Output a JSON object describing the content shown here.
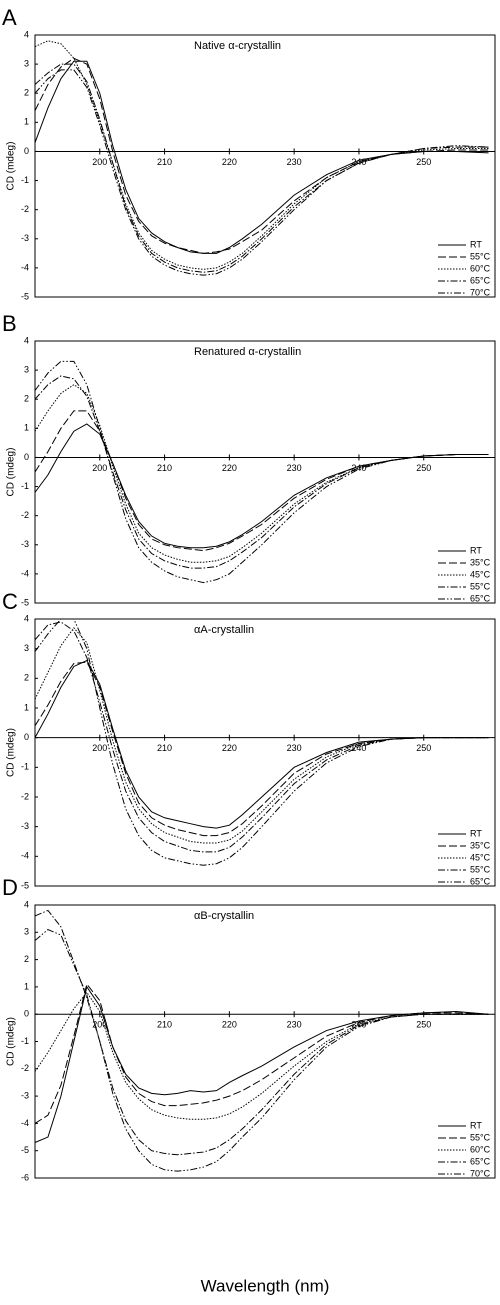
{
  "chart_data": [
    {
      "type": "line",
      "panel_label": "A",
      "title": "Native α-crystallin",
      "y_label": "CD (mdeg)",
      "x": [
        190,
        192,
        194,
        196,
        198,
        200,
        202,
        204,
        206,
        208,
        210,
        212,
        214,
        216,
        218,
        220,
        222,
        225,
        230,
        235,
        240,
        245,
        250,
        255,
        260
      ],
      "xlim": [
        190,
        261
      ],
      "xticks": [
        200,
        210,
        220,
        230,
        240,
        250
      ],
      "ylim": [
        -5,
        4
      ],
      "yticks": [
        -5,
        -4,
        -3,
        -2,
        -1,
        0,
        1,
        2,
        3,
        4
      ],
      "series": [
        {
          "name": "RT",
          "color": "#000000",
          "line_style": "solid",
          "values": [
            0.3,
            1.5,
            2.5,
            3.1,
            3.1,
            2.0,
            0.2,
            -1.3,
            -2.3,
            -2.8,
            -3.1,
            -3.3,
            -3.45,
            -3.5,
            -3.5,
            -3.3,
            -3.0,
            -2.5,
            -1.5,
            -0.8,
            -0.3,
            -0.1,
            0,
            0,
            -0.05
          ]
        },
        {
          "name": "55°C",
          "color": "#000000",
          "line_style": "dashed",
          "values": [
            1.4,
            2.3,
            2.9,
            3.2,
            3.0,
            1.8,
            0.0,
            -1.5,
            -2.4,
            -2.9,
            -3.15,
            -3.3,
            -3.4,
            -3.5,
            -3.45,
            -3.35,
            -3.1,
            -2.7,
            -1.7,
            -0.9,
            -0.35,
            -0.1,
            0,
            0.05,
            0.05
          ]
        },
        {
          "name": "60°C",
          "color": "#000000",
          "line_style": "dotted",
          "values": [
            3.6,
            3.8,
            3.7,
            3.2,
            2.3,
            1.0,
            -0.4,
            -1.8,
            -2.8,
            -3.4,
            -3.7,
            -3.9,
            -4.0,
            -4.05,
            -4.0,
            -3.8,
            -3.5,
            -2.9,
            -1.8,
            -0.9,
            -0.35,
            -0.1,
            0.05,
            0.1,
            0.1
          ]
        },
        {
          "name": "65°C",
          "color": "#000000",
          "line_style": "dashdot",
          "values": [
            2.3,
            2.7,
            3.0,
            3.0,
            2.4,
            1.1,
            -0.4,
            -1.9,
            -2.9,
            -3.5,
            -3.8,
            -4.0,
            -4.1,
            -4.15,
            -4.1,
            -3.9,
            -3.6,
            -3.0,
            -1.9,
            -1.0,
            -0.4,
            -0.1,
            0.1,
            0.15,
            0.15
          ]
        },
        {
          "name": "70°C",
          "color": "#000000",
          "line_style": "dashdotdot",
          "values": [
            2.0,
            2.5,
            2.8,
            2.8,
            2.2,
            0.9,
            -0.6,
            -2.0,
            -3.0,
            -3.6,
            -3.9,
            -4.1,
            -4.2,
            -4.25,
            -4.2,
            -4.0,
            -3.7,
            -3.1,
            -2.0,
            -1.0,
            -0.4,
            -0.1,
            0.1,
            0.2,
            0.15
          ]
        }
      ]
    },
    {
      "type": "line",
      "panel_label": "B",
      "title": "Renatured α-crystallin",
      "y_label": "CD (mdeg)",
      "x": [
        190,
        192,
        194,
        196,
        198,
        200,
        202,
        204,
        206,
        208,
        210,
        212,
        214,
        216,
        218,
        220,
        222,
        225,
        230,
        235,
        240,
        245,
        250,
        255,
        260
      ],
      "xlim": [
        190,
        261
      ],
      "xticks": [
        200,
        210,
        220,
        230,
        240,
        250
      ],
      "ylim": [
        -5,
        4
      ],
      "yticks": [
        -5,
        -4,
        -3,
        -2,
        -1,
        0,
        1,
        2,
        3,
        4
      ],
      "series": [
        {
          "name": "RT",
          "color": "#000000",
          "line_style": "solid",
          "values": [
            -1.2,
            -0.6,
            0.2,
            0.9,
            1.15,
            0.8,
            -0.2,
            -1.3,
            -2.2,
            -2.7,
            -2.95,
            -3.05,
            -3.1,
            -3.1,
            -3.05,
            -2.9,
            -2.65,
            -2.2,
            -1.3,
            -0.7,
            -0.3,
            -0.1,
            0.05,
            0.1,
            0.1
          ]
        },
        {
          "name": "35°C",
          "color": "#000000",
          "line_style": "dashed",
          "values": [
            -0.5,
            0.2,
            1.0,
            1.6,
            1.6,
            0.9,
            -0.2,
            -1.4,
            -2.3,
            -2.8,
            -3.0,
            -3.1,
            -3.15,
            -3.2,
            -3.1,
            -2.95,
            -2.7,
            -2.3,
            -1.4,
            -0.75,
            -0.3,
            -0.1,
            0.05,
            0.1,
            0.1
          ]
        },
        {
          "name": "45°C",
          "color": "#000000",
          "line_style": "dotted",
          "values": [
            0.9,
            1.6,
            2.2,
            2.5,
            2.2,
            1.1,
            -0.3,
            -1.6,
            -2.6,
            -3.1,
            -3.35,
            -3.5,
            -3.6,
            -3.6,
            -3.55,
            -3.4,
            -3.1,
            -2.6,
            -1.6,
            -0.85,
            -0.35,
            -0.1,
            0.05,
            0.1,
            0.1
          ]
        },
        {
          "name": "55°C",
          "color": "#000000",
          "line_style": "dashdot",
          "values": [
            2.0,
            2.5,
            2.8,
            2.7,
            2.1,
            0.9,
            -0.5,
            -1.8,
            -2.8,
            -3.3,
            -3.55,
            -3.7,
            -3.8,
            -3.8,
            -3.75,
            -3.55,
            -3.25,
            -2.75,
            -1.7,
            -0.9,
            -0.35,
            -0.1,
            0.05,
            0.1,
            0.1
          ]
        },
        {
          "name": "65°C",
          "color": "#000000",
          "line_style": "dashdotdot",
          "values": [
            2.3,
            2.9,
            3.3,
            3.3,
            2.5,
            1.0,
            -0.6,
            -2.1,
            -3.1,
            -3.6,
            -3.9,
            -4.1,
            -4.2,
            -4.3,
            -4.2,
            -4.0,
            -3.6,
            -3.0,
            -1.9,
            -1.0,
            -0.4,
            -0.1,
            0.05,
            0.1,
            0.1
          ]
        }
      ]
    },
    {
      "type": "line",
      "panel_label": "C",
      "title": "αA-crystallin",
      "y_label": "CD (mdeg)",
      "x": [
        190,
        192,
        194,
        196,
        198,
        200,
        202,
        204,
        206,
        208,
        210,
        212,
        214,
        216,
        218,
        220,
        222,
        225,
        230,
        235,
        240,
        245,
        250,
        255,
        260
      ],
      "xlim": [
        190,
        261
      ],
      "xticks": [
        200,
        210,
        220,
        230,
        240,
        250
      ],
      "ylim": [
        -5,
        4
      ],
      "yticks": [
        -5,
        -4,
        -3,
        -2,
        -1,
        0,
        1,
        2,
        3,
        4
      ],
      "series": [
        {
          "name": "RT",
          "color": "#000000",
          "line_style": "solid",
          "values": [
            0,
            0.8,
            1.7,
            2.4,
            2.6,
            1.8,
            0.3,
            -1.1,
            -2.0,
            -2.5,
            -2.7,
            -2.8,
            -2.9,
            -3.0,
            -3.05,
            -2.95,
            -2.6,
            -2.0,
            -1.0,
            -0.5,
            -0.15,
            -0.05,
            0,
            0,
            0
          ]
        },
        {
          "name": "35°C",
          "color": "#000000",
          "line_style": "dashed",
          "values": [
            0.4,
            1.1,
            1.9,
            2.5,
            2.55,
            1.7,
            0.2,
            -1.2,
            -2.2,
            -2.7,
            -2.95,
            -3.1,
            -3.2,
            -3.3,
            -3.3,
            -3.2,
            -2.9,
            -2.3,
            -1.2,
            -0.55,
            -0.2,
            -0.05,
            0,
            0,
            0
          ]
        },
        {
          "name": "45°C",
          "color": "#000000",
          "line_style": "dotted",
          "values": [
            1.3,
            2.2,
            3.1,
            3.7,
            3.2,
            1.6,
            -0.1,
            -1.5,
            -2.4,
            -2.9,
            -3.2,
            -3.35,
            -3.5,
            -3.55,
            -3.55,
            -3.45,
            -3.15,
            -2.5,
            -1.4,
            -0.65,
            -0.2,
            -0.05,
            0,
            0,
            0
          ]
        },
        {
          "name": "55°C",
          "color": "#000000",
          "line_style": "dashdot",
          "values": [
            3.3,
            3.8,
            3.9,
            3.6,
            2.7,
            1.2,
            -0.4,
            -1.8,
            -2.7,
            -3.2,
            -3.5,
            -3.65,
            -3.8,
            -3.85,
            -3.85,
            -3.7,
            -3.35,
            -2.7,
            -1.55,
            -0.75,
            -0.25,
            -0.05,
            0,
            0,
            0
          ]
        },
        {
          "name": "65°C",
          "color": "#000000",
          "line_style": "dashdotdot",
          "values": [
            2.9,
            3.5,
            4.0,
            4.0,
            3.0,
            1.0,
            -0.9,
            -2.4,
            -3.3,
            -3.8,
            -4.05,
            -4.15,
            -4.25,
            -4.3,
            -4.25,
            -4.05,
            -3.7,
            -3.0,
            -1.8,
            -0.85,
            -0.3,
            -0.05,
            0,
            0,
            0
          ]
        }
      ]
    },
    {
      "type": "line",
      "panel_label": "D",
      "title": "αB-crystallin",
      "y_label": "CD (mdeg)",
      "x_label": "Wavelength (nm)",
      "x": [
        190,
        192,
        194,
        196,
        198,
        200,
        202,
        204,
        206,
        208,
        210,
        212,
        214,
        216,
        218,
        220,
        222,
        225,
        230,
        235,
        240,
        245,
        250,
        255,
        260
      ],
      "xlim": [
        190,
        261
      ],
      "xticks": [
        200,
        210,
        220,
        230,
        240,
        250
      ],
      "ylim": [
        -6,
        4
      ],
      "yticks": [
        -6,
        -5,
        -4,
        -3,
        -2,
        -1,
        0,
        1,
        2,
        3,
        4
      ],
      "series": [
        {
          "name": "RT",
          "color": "#000000",
          "line_style": "solid",
          "values": [
            -4.7,
            -4.5,
            -3.0,
            -1.0,
            1.0,
            0.3,
            -1.2,
            -2.2,
            -2.7,
            -2.9,
            -2.95,
            -2.9,
            -2.8,
            -2.85,
            -2.8,
            -2.5,
            -2.25,
            -1.9,
            -1.2,
            -0.6,
            -0.25,
            -0.05,
            0.05,
            0.1,
            0
          ]
        },
        {
          "name": "55°C",
          "color": "#000000",
          "line_style": "dashed",
          "values": [
            -4.0,
            -3.7,
            -2.6,
            -0.8,
            1.1,
            0.5,
            -1.2,
            -2.3,
            -2.9,
            -3.2,
            -3.35,
            -3.35,
            -3.3,
            -3.25,
            -3.15,
            -3.0,
            -2.8,
            -2.4,
            -1.6,
            -0.8,
            -0.3,
            -0.05,
            0.05,
            0.05,
            0
          ]
        },
        {
          "name": "60°C",
          "color": "#000000",
          "line_style": "dotted",
          "values": [
            -2.1,
            -1.4,
            -0.6,
            0.2,
            0.8,
            0.1,
            -1.4,
            -2.5,
            -3.1,
            -3.5,
            -3.7,
            -3.8,
            -3.85,
            -3.85,
            -3.8,
            -3.65,
            -3.4,
            -2.9,
            -1.9,
            -1.0,
            -0.35,
            -0.1,
            0,
            0,
            0
          ]
        },
        {
          "name": "65°C",
          "color": "#000000",
          "line_style": "dashdot",
          "values": [
            3.6,
            3.8,
            3.2,
            1.9,
            0.6,
            -1.0,
            -2.7,
            -3.9,
            -4.6,
            -5.0,
            -5.1,
            -5.15,
            -5.1,
            -5.05,
            -4.9,
            -4.6,
            -4.2,
            -3.5,
            -2.2,
            -1.1,
            -0.4,
            -0.1,
            0,
            0,
            0
          ]
        },
        {
          "name": "70°C",
          "color": "#000000",
          "line_style": "dashdotdot",
          "values": [
            2.7,
            3.1,
            2.9,
            1.8,
            0.7,
            -1.0,
            -2.9,
            -4.2,
            -5.0,
            -5.5,
            -5.7,
            -5.75,
            -5.7,
            -5.6,
            -5.4,
            -5.0,
            -4.5,
            -3.8,
            -2.4,
            -1.2,
            -0.45,
            -0.1,
            0,
            0,
            0
          ]
        }
      ]
    }
  ]
}
